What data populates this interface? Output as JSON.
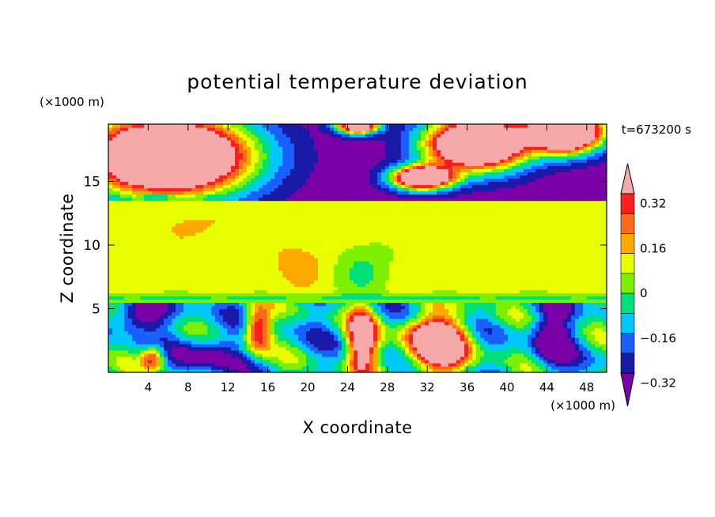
{
  "chart_data": {
    "type": "heatmap",
    "title": "potential temperature deviation",
    "xlabel": "X coordinate",
    "ylabel": "Z coordinate",
    "x_unit": "(×1000 m)",
    "y_unit": "(×1000 m)",
    "time_label": "t=673200 s",
    "xlim": [
      0,
      50
    ],
    "ylim": [
      0,
      19.5
    ],
    "x_ticks": [
      4,
      8,
      12,
      16,
      20,
      24,
      28,
      32,
      36,
      40,
      44,
      48
    ],
    "y_ticks": [
      5,
      10,
      15
    ],
    "colorbar": {
      "labels": [
        "0.32",
        "0.16",
        "0",
        "-0.16",
        "-0.32"
      ],
      "label_values": [
        0.32,
        0.16,
        0,
        -0.16,
        -0.32
      ],
      "levels": [
        -0.4,
        -0.32,
        -0.24,
        -0.16,
        -0.08,
        0,
        0.08,
        0.16,
        0.24,
        0.32,
        0.4
      ],
      "colors": [
        "#7a00a8",
        "#1a1aa8",
        "#1a5fff",
        "#00c8ff",
        "#00e07a",
        "#7cf000",
        "#e8ff00",
        "#ffa800",
        "#ff6a1a",
        "#ff1e1e",
        "#f7a8a8"
      ]
    },
    "regions": [
      {
        "zone": "upper",
        "z_range": [
          13.4,
          19.5
        ],
        "dominant_value": -0.4,
        "patches_value": 0.4
      },
      {
        "zone": "middle",
        "z_range": [
          5.5,
          13.4
        ],
        "dominant_value": 0.04,
        "patches_value": 0.12
      },
      {
        "zone": "lower",
        "z_range": [
          0,
          5.5
        ],
        "dominant_value": -0.2,
        "patches_value": 0.4
      }
    ]
  }
}
